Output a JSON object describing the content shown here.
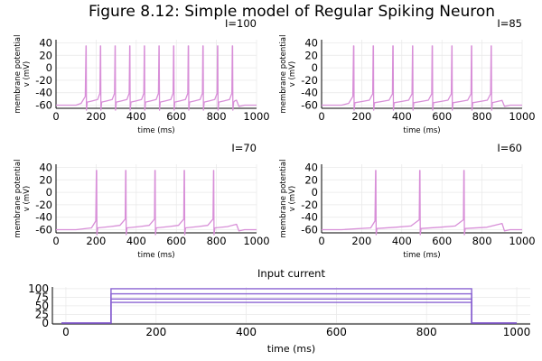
{
  "figure_title": "Figure 8.12: Simple model of Regular Spiking Neuron",
  "colors": {
    "spike": "#d88fd8",
    "current": "#8a63d2",
    "axis": "#000000",
    "grid": "#e8e8e8"
  },
  "chart_data": [
    {
      "type": "line",
      "title": "I=100",
      "xlabel": "time (ms)",
      "ylabel": "membrane potential\nv (mV)",
      "xlim": [
        0,
        1000
      ],
      "ylim": [
        -65,
        45
      ],
      "xticks": [
        0,
        200,
        400,
        600,
        800,
        1000
      ],
      "yticks": [
        -60,
        -40,
        -20,
        0,
        20,
        40
      ],
      "grid": true,
      "rest_mV": -60,
      "plateau_mV": -53,
      "peak_mV": 35,
      "stim_on_ms": 100,
      "stim_off_ms": 900,
      "spike_times_ms": [
        150,
        222,
        295,
        368,
        441,
        514,
        587,
        660,
        733,
        806,
        880
      ]
    },
    {
      "type": "line",
      "title": "I=85",
      "xlabel": "time (ms)",
      "ylabel": "membrane potential\nv (mV)",
      "xlim": [
        0,
        1000
      ],
      "ylim": [
        -65,
        45
      ],
      "xticks": [
        0,
        200,
        400,
        600,
        800,
        1000
      ],
      "yticks": [
        -60,
        -40,
        -20,
        0,
        20,
        40
      ],
      "grid": true,
      "rest_mV": -60,
      "plateau_mV": -54,
      "peak_mV": 35,
      "stim_on_ms": 100,
      "stim_off_ms": 900,
      "spike_times_ms": [
        160,
        258,
        356,
        454,
        552,
        650,
        748,
        846
      ]
    },
    {
      "type": "line",
      "title": "I=70",
      "xlabel": "time (ms)",
      "ylabel": "membrane potential\nv (mV)",
      "xlim": [
        0,
        1000
      ],
      "ylim": [
        -65,
        45
      ],
      "xticks": [
        0,
        200,
        400,
        600,
        800,
        1000
      ],
      "yticks": [
        -60,
        -40,
        -20,
        0,
        20,
        40
      ],
      "grid": true,
      "rest_mV": -60,
      "plateau_mV": -55,
      "peak_mV": 35,
      "stim_on_ms": 100,
      "stim_off_ms": 900,
      "spike_times_ms": [
        202,
        348,
        494,
        640,
        786
      ]
    },
    {
      "type": "line",
      "title": "I=60",
      "xlabel": "time (ms)",
      "ylabel": "membrane potential\nv (mV)",
      "xlim": [
        0,
        1000
      ],
      "ylim": [
        -65,
        45
      ],
      "xticks": [
        0,
        200,
        400,
        600,
        800,
        1000
      ],
      "yticks": [
        -60,
        -40,
        -20,
        0,
        20,
        40
      ],
      "grid": true,
      "rest_mV": -60,
      "plateau_mV": -56,
      "peak_mV": 35,
      "stim_on_ms": 100,
      "stim_off_ms": 900,
      "spike_times_ms": [
        270,
        490,
        710
      ]
    },
    {
      "type": "line",
      "title": "Input current",
      "xlabel": "time (ms)",
      "ylabel": "",
      "xlim": [
        -30,
        1030
      ],
      "ylim": [
        -3,
        105
      ],
      "xticks": [
        0,
        200,
        400,
        600,
        800,
        1000
      ],
      "yticks": [
        0,
        25,
        50,
        75,
        100
      ],
      "grid": true,
      "stim_on_ms": 100,
      "stim_off_ms": 900,
      "series_values": [
        100,
        85,
        70,
        60
      ]
    }
  ]
}
